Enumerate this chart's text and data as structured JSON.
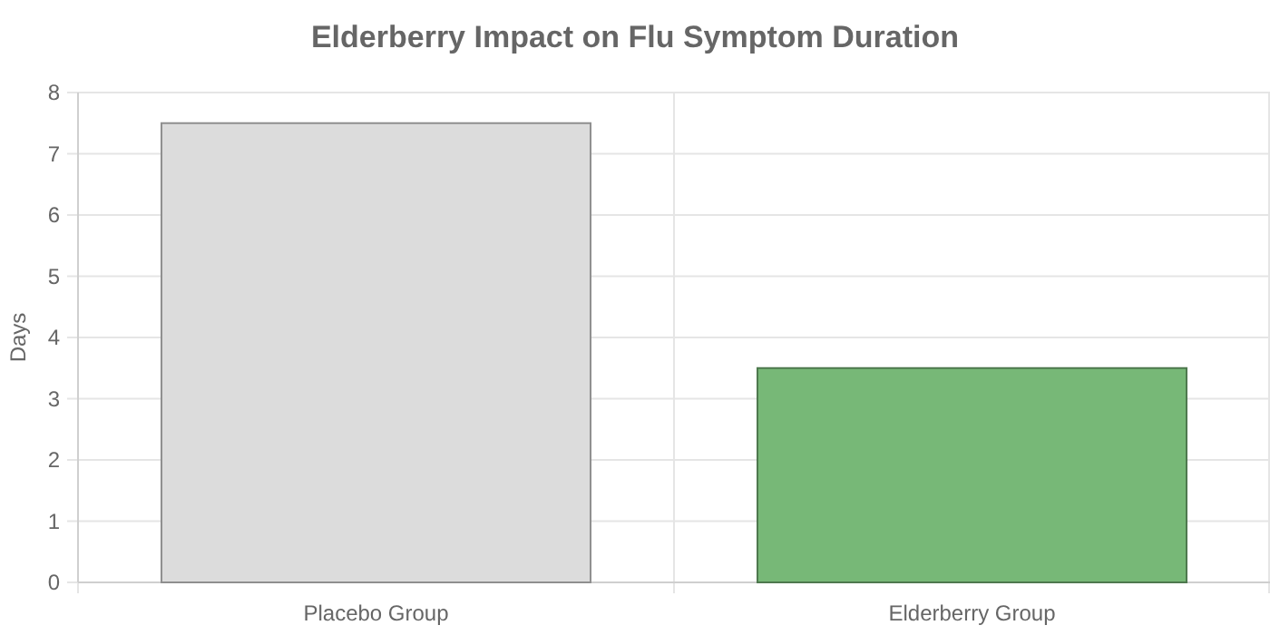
{
  "chart_data": {
    "type": "bar",
    "title": "Elderberry Impact on Flu Symptom Duration",
    "ylabel": "Days",
    "categories": [
      "Placebo Group",
      "Elderberry Group"
    ],
    "values": [
      7.5,
      3.5
    ],
    "colors": [
      "#dcdcdc",
      "#77b877"
    ],
    "ylim": [
      0,
      8
    ],
    "yticks": [
      0,
      1,
      2,
      3,
      4,
      5,
      6,
      7,
      8
    ],
    "grid": true
  }
}
